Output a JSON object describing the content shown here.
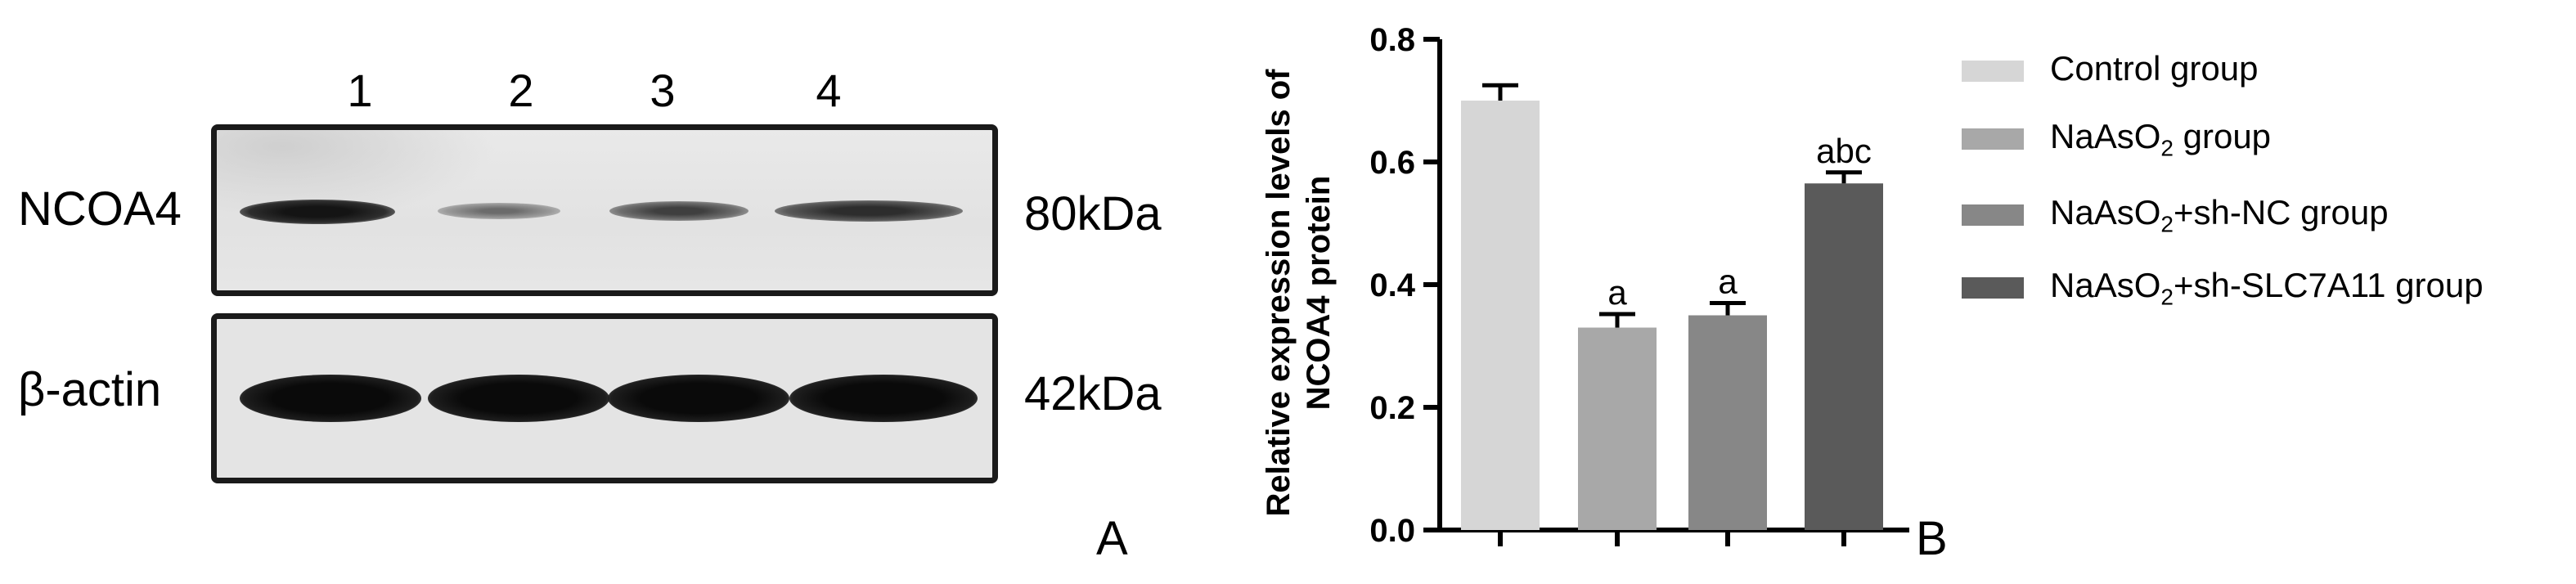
{
  "blot": {
    "lanes": [
      "1",
      "2",
      "3",
      "4"
    ],
    "rows": [
      {
        "label": "NCOA4",
        "size": "80kDa"
      },
      {
        "label": "β-actin",
        "size": "42kDa"
      }
    ],
    "panel_label": "A"
  },
  "chart_data": {
    "type": "bar",
    "ylabel_line1": "Relative expression levels of",
    "ylabel_line2": "NCOA4 protein",
    "ylim": [
      0,
      0.8
    ],
    "yticks": [
      "0.0",
      "0.2",
      "0.4",
      "0.6",
      "0.8"
    ],
    "categories": [
      "Control group",
      "NaAsO2 group",
      "NaAsO2+sh-NC group",
      "NaAsO2+sh-SLC7A11 group"
    ],
    "values": [
      0.7,
      0.33,
      0.35,
      0.565
    ],
    "errors": [
      0.025,
      0.022,
      0.02,
      0.018
    ],
    "annotations": [
      "",
      "a",
      "a",
      "abc"
    ],
    "colors": [
      "#d6d6d6",
      "#a8a8a8",
      "#878787",
      "#5a5a5a"
    ],
    "legend": [
      {
        "pre": "Control group",
        "sub": "",
        "post": ""
      },
      {
        "pre": "NaAsO",
        "sub": "2",
        "post": " group"
      },
      {
        "pre": "NaAsO",
        "sub": "2",
        "post": "+sh-NC group"
      },
      {
        "pre": "NaAsO",
        "sub": "2",
        "post": "+sh-SLC7A11 group"
      }
    ],
    "legend_position": "right",
    "grid": false,
    "panel_label": "B"
  }
}
